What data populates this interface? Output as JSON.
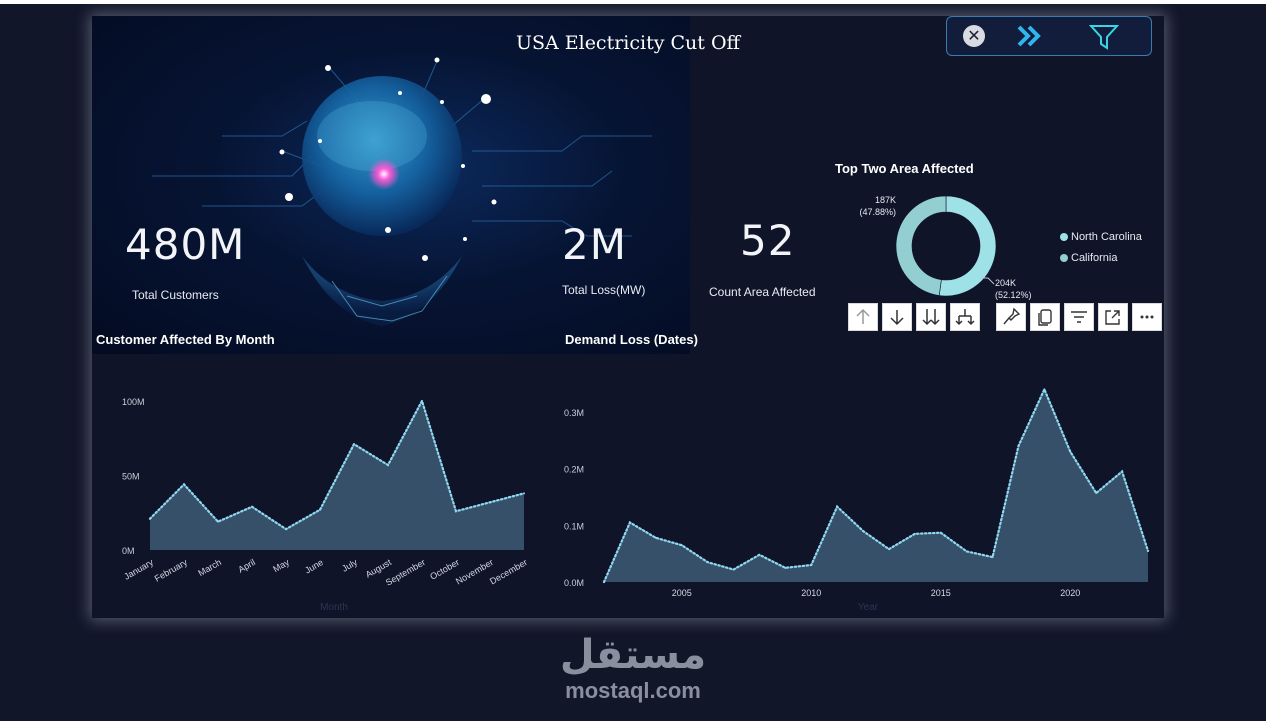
{
  "dashboard": {
    "title": "USA Electricity Cut Off",
    "kpis": [
      {
        "value": "480M",
        "label": "Total Customers"
      },
      {
        "value": "2M",
        "label": "Total Loss(MW)"
      },
      {
        "value": "52",
        "label": "Count Area Affected"
      }
    ]
  },
  "colors": {
    "accent": "#9ee1e6",
    "donut_nc": "#9ee1e6",
    "donut_ca": "#93cfd2",
    "area_fill": "#37506a",
    "area_line": "#8fd8ef",
    "background": "#0f1429"
  },
  "toolbar_icons": [
    "close-icon",
    "double-chevron-right-icon",
    "filter-icon"
  ],
  "visual_header_icons": [
    "arrow-up-icon",
    "arrow-down-icon",
    "double-arrow-down-icon",
    "expand-hierarchy-icon",
    "pin-icon",
    "copy-icon",
    "filter-lines-icon",
    "focus-mode-icon",
    "more-options-icon"
  ],
  "chart_data": [
    {
      "type": "pie",
      "title": "Top Two Area Affected",
      "series": [
        {
          "name": "North Carolina",
          "value": 204,
          "label": "204K",
          "percent": "(52.12%)"
        },
        {
          "name": "California",
          "value": 187,
          "label": "187K",
          "percent": "(47.88%)"
        }
      ],
      "legend": "right"
    },
    {
      "type": "area",
      "title": "Customer Affected By Month",
      "categories": [
        "January",
        "February",
        "March",
        "April",
        "May",
        "June",
        "July",
        "August",
        "September",
        "October",
        "November",
        "December"
      ],
      "values": [
        21,
        44,
        19,
        29,
        14,
        27,
        71,
        57,
        100,
        26,
        32,
        38
      ],
      "ylim": [
        0,
        110
      ],
      "yticks": [
        "0M",
        "50M",
        "100M"
      ],
      "ytick_values": [
        0,
        50,
        100
      ],
      "xlabel": "Month",
      "ylabel": ""
    },
    {
      "type": "area",
      "title": "Demand Loss (Dates)",
      "x": [
        2002,
        2003,
        2004,
        2005,
        2006,
        2007,
        2008,
        2009,
        2010,
        2011,
        2012,
        2013,
        2014,
        2015,
        2016,
        2017,
        2018,
        2019,
        2020,
        2021,
        2022,
        2023
      ],
      "values": [
        0.0,
        0.105,
        0.078,
        0.065,
        0.035,
        0.022,
        0.048,
        0.025,
        0.03,
        0.133,
        0.09,
        0.058,
        0.085,
        0.087,
        0.054,
        0.044,
        0.24,
        0.34,
        0.23,
        0.157,
        0.195,
        0.055
      ],
      "ylim": [
        0,
        0.36
      ],
      "yticks": [
        "0.0M",
        "0.1M",
        "0.2M",
        "0.3M"
      ],
      "ytick_values": [
        0,
        0.1,
        0.2,
        0.3
      ],
      "xticks": [
        2005,
        2010,
        2015,
        2020
      ],
      "xlabel": "Year",
      "ylabel": ""
    }
  ],
  "watermark": {
    "arabic": "مستقل",
    "latin": "mostaql.com"
  }
}
